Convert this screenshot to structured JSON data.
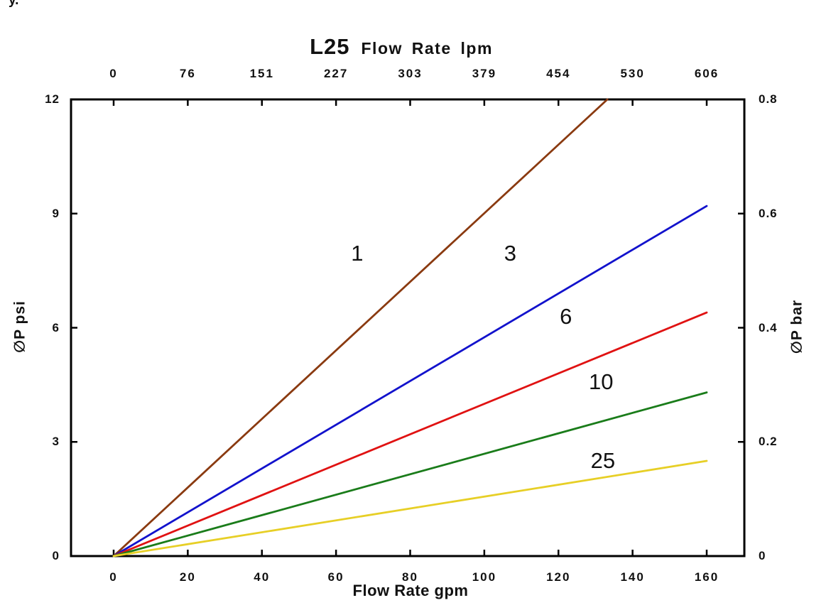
{
  "stray_mark": "y.",
  "chart_data": {
    "type": "line",
    "title_model": "L25",
    "title": "L25 Flow Rate lpm",
    "grid": false,
    "legend": "inline-labels-on-lines",
    "x_top": {
      "label": "Flow Rate lpm",
      "ticks": [
        "0",
        "76",
        "151",
        "227",
        "303",
        "379",
        "454",
        "530",
        "606"
      ],
      "range": [
        0,
        606
      ]
    },
    "x_bottom": {
      "label": "Flow Rate gpm",
      "ticks": [
        "0",
        "20",
        "40",
        "60",
        "80",
        "100",
        "120",
        "140",
        "160"
      ],
      "range": [
        0,
        160
      ]
    },
    "y_left": {
      "label": "∅P psi",
      "ticks": [
        "0",
        "3",
        "6",
        "9",
        "12"
      ],
      "range": [
        0,
        12
      ]
    },
    "y_right": {
      "label": "∅P bar",
      "ticks": [
        "0",
        "0.2",
        "0.4",
        "0.6",
        "0.8"
      ],
      "range": [
        0,
        0.8
      ]
    },
    "series": [
      {
        "name": "1",
        "color": "#8a3a10",
        "points": [
          [
            0,
            0
          ],
          [
            133.2,
            12
          ]
        ],
        "label_at": [
          65.7,
          7.95
        ]
      },
      {
        "name": "3",
        "color": "#1212cc",
        "points": [
          [
            0,
            0
          ],
          [
            160,
            9.2
          ]
        ],
        "label_at": [
          107.0,
          7.95
        ]
      },
      {
        "name": "6",
        "color": "#e01212",
        "points": [
          [
            0,
            0
          ],
          [
            160,
            6.4
          ]
        ],
        "label_at": [
          122.0,
          6.28
        ]
      },
      {
        "name": "10",
        "color": "#1a7c1a",
        "points": [
          [
            0,
            0
          ],
          [
            160,
            4.3
          ]
        ],
        "label_at": [
          131.5,
          4.58
        ]
      },
      {
        "name": "25",
        "color": "#e7cf26",
        "points": [
          [
            0,
            0
          ],
          [
            160,
            2.5
          ]
        ],
        "label_at": [
          132.0,
          2.5
        ]
      }
    ]
  }
}
